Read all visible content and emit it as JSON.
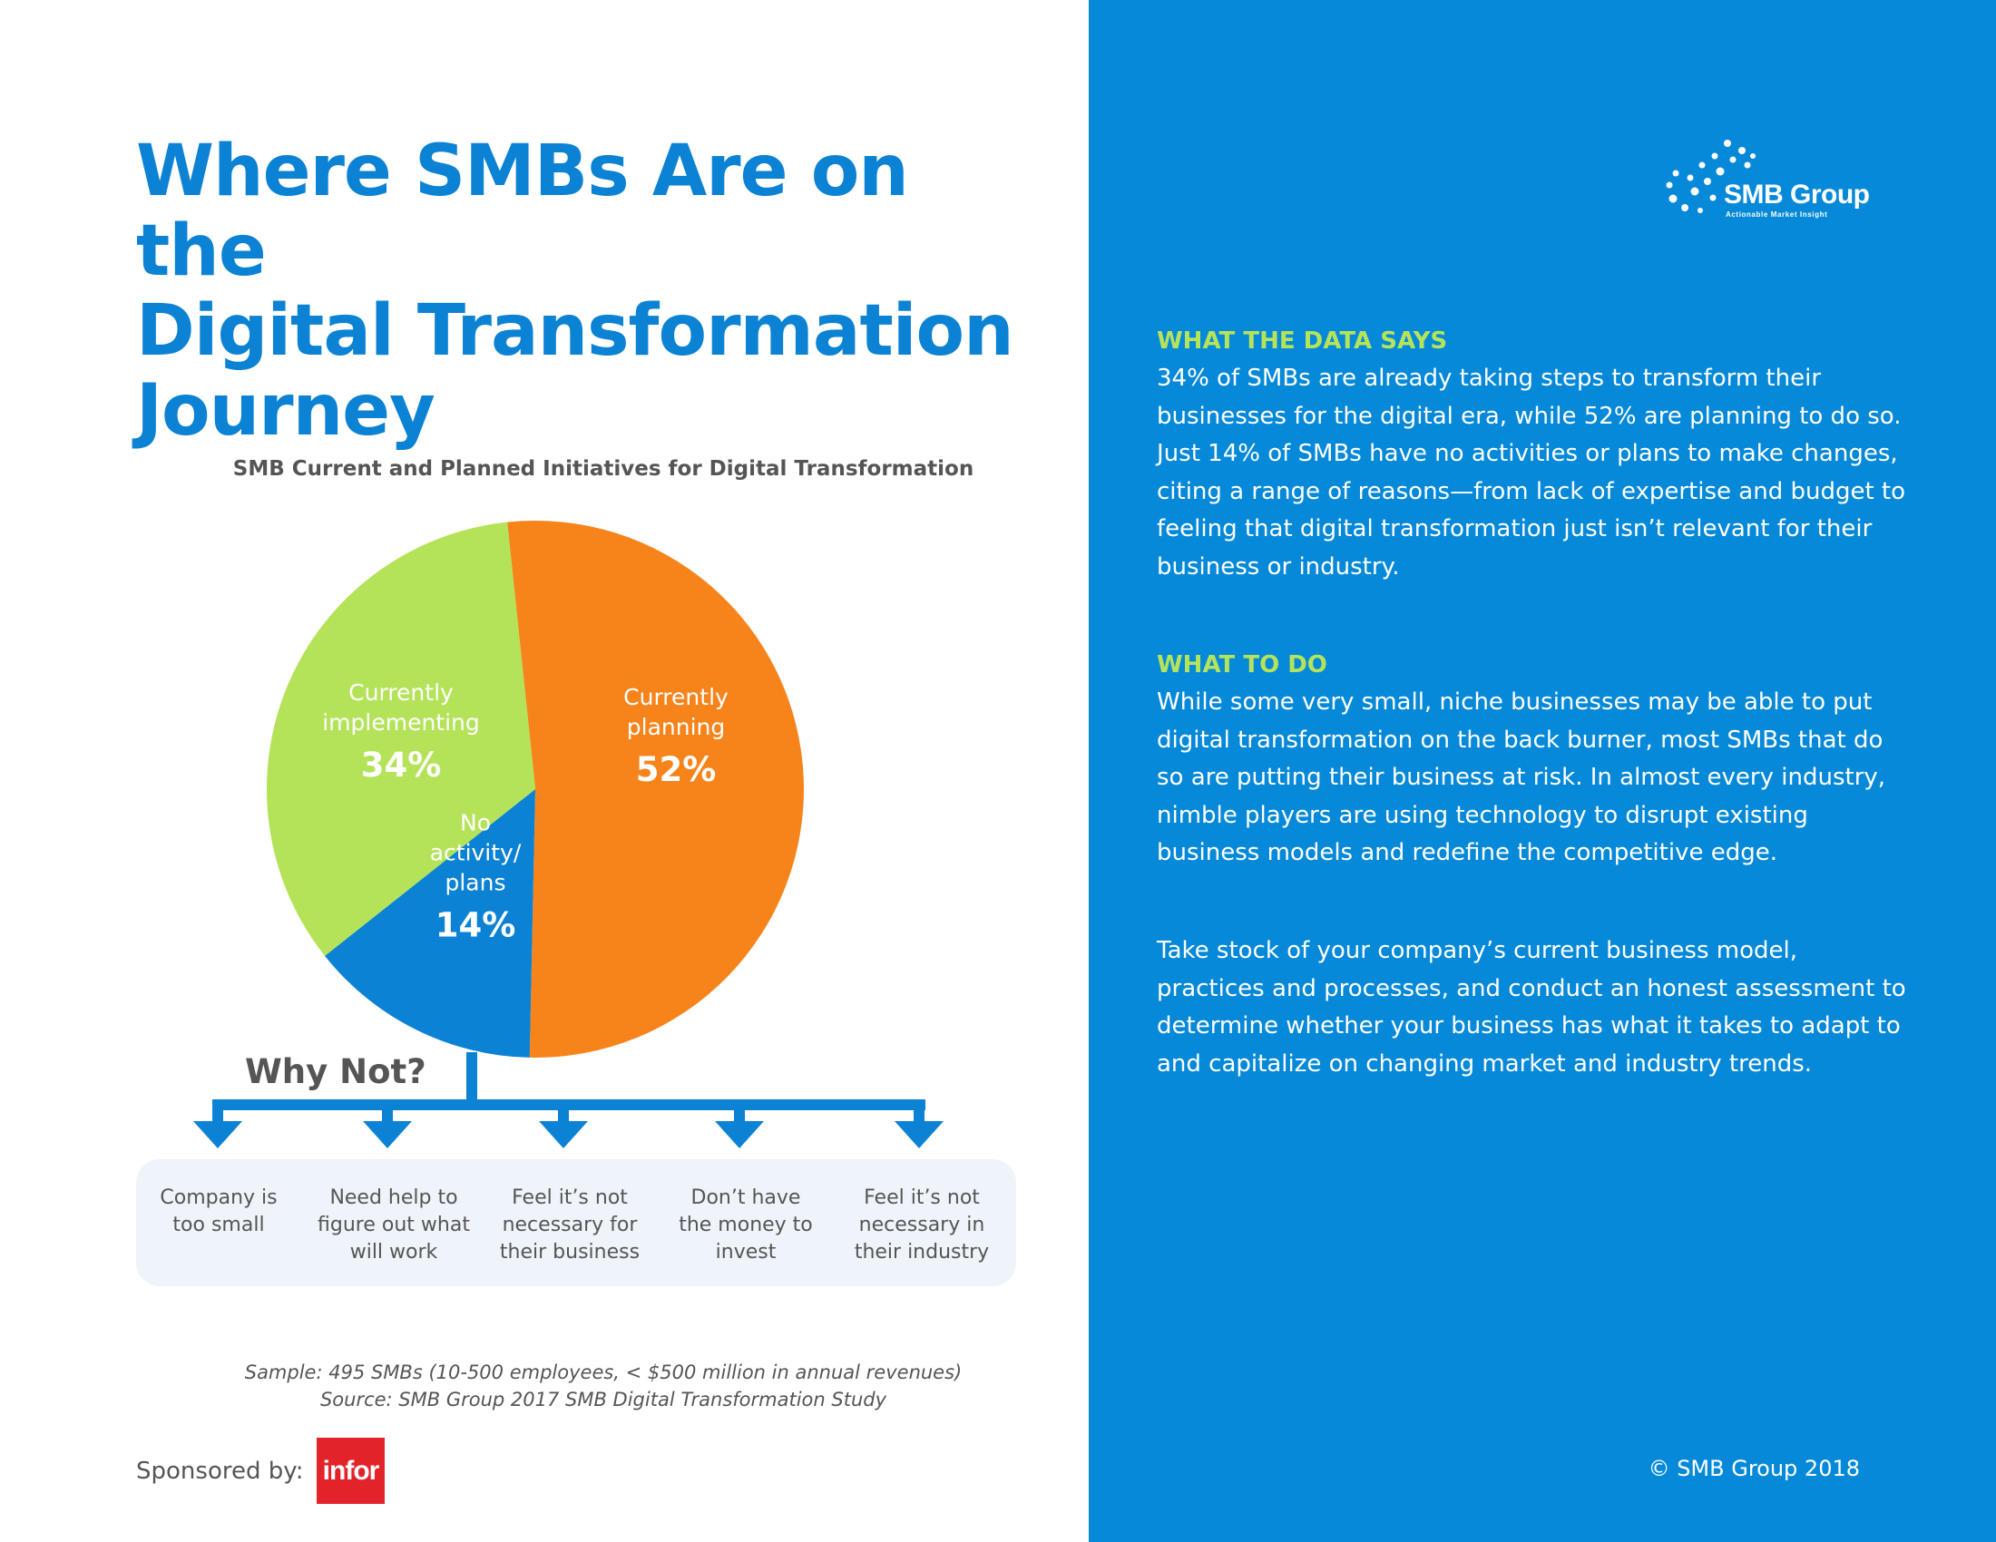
{
  "page": {
    "title_lines": [
      "Where SMBs Are on the",
      "Digital Transformation",
      "Journey"
    ]
  },
  "chart_data": {
    "type": "pie",
    "title": "SMB Current and Planned Initiatives for Digital Transformation",
    "slices": [
      {
        "label_lines": [
          "Currently",
          "planning"
        ],
        "value": 52,
        "value_label": "52%",
        "color": "#f7841b"
      },
      {
        "label_lines": [
          "No",
          "activity/",
          "plans"
        ],
        "value": 14,
        "value_label": "14%",
        "color": "#0b82d4"
      },
      {
        "label_lines": [
          "Currently",
          "implementing"
        ],
        "value": 34,
        "value_label": "34%",
        "color": "#b4e35a"
      }
    ],
    "annotation": "Why Not?",
    "reasons": [
      [
        "Company is",
        "too small"
      ],
      [
        "Need help to",
        "figure out what",
        "will work"
      ],
      [
        "Feel it’s not",
        "necessary for",
        "their business"
      ],
      [
        "Don’t have",
        "the money to",
        "invest"
      ],
      [
        "Feel it’s not",
        "necessary in",
        "their industry"
      ]
    ]
  },
  "footnotes": {
    "sample": "Sample: 495 SMBs (10-500 employees, < $500 million in annual revenues)",
    "source": "Source: SMB Group 2017 SMB Digital Transformation Study"
  },
  "sponsor": {
    "label": "Sponsored by:",
    "logo_text": "infor"
  },
  "brand": {
    "name": "SMB Group",
    "tagline": "Actionable Market Insight",
    "copyright": "© SMB Group 2018"
  },
  "sidebar": {
    "data_heading": "WHAT THE DATA SAYS",
    "data_text": "34% of SMBs are already taking steps to transform their businesses for the digital era, while 52% are planning to do so. Just 14% of SMBs have no activities or plans to make changes, citing a range of reasons—from lack of expertise and budget to feeling that digital transformation just isn’t relevant for their business or industry.",
    "todo_heading": "WHAT TO DO",
    "todo_text_1": "While some very small, niche businesses may be able to put digital transformation on the back burner, most SMBs that do so are putting their business at risk. In almost every industry, nimble players are using technology to disrupt existing business models and redefine the competitive edge.",
    "todo_text_2": "Take stock of your company’s current business model, practices and processes, and conduct an honest assessment to determine whether your business has what it takes to adapt to and capitalize on changing market and industry trends."
  },
  "colors": {
    "brand_blue": "#0689d8",
    "title_blue": "#0b82d4",
    "accent_green": "#b5e45a",
    "orange": "#f7841b",
    "infor_red": "#e2232a"
  }
}
